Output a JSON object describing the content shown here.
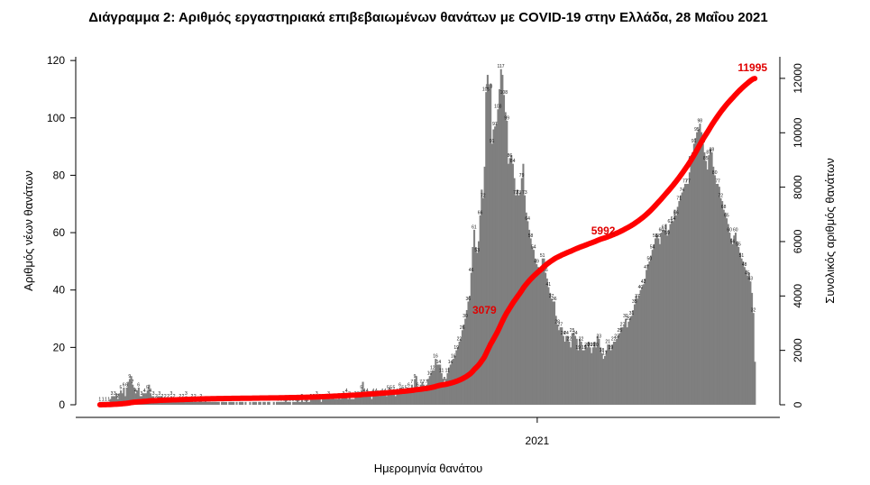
{
  "chart_data": {
    "type": "bar",
    "title": "Διάγραμμα 2: Αριθμός εργαστηριακά επιβεβαιωμένων θανάτων με COVID-19 στην Ελλάδα, 28 Μαΐου 2021",
    "xlabel": "Ημερομηνία θανάτου",
    "ylabel_left": "Αριθμός νέων θανάτων",
    "ylabel_right": "Συνολικός αριθμός θανάτων",
    "x_start_date": "2020-03-12",
    "x_end_date": "2021-05-27",
    "x_ticks": [
      {
        "date": "2021-01-01",
        "label": "2021"
      }
    ],
    "ylim_left": [
      0,
      130
    ],
    "yticks_left": [
      0,
      20,
      40,
      60,
      80,
      100,
      120
    ],
    "ylim_right": [
      0,
      12800
    ],
    "yticks_right": [
      0,
      2000,
      4000,
      6000,
      8000,
      10000,
      12000
    ],
    "bar_color": "#7f7f7f",
    "line_color": "#ff0000",
    "annotations": [
      {
        "date": "2020-11-22",
        "value": 3079,
        "label": "3079"
      },
      {
        "date": "2021-02-10",
        "value": 5992,
        "label": "5992"
      },
      {
        "date": "2021-05-26",
        "value": 11995,
        "label": "11995"
      }
    ],
    "new_deaths": [
      1,
      1,
      1,
      1,
      1,
      1,
      2,
      3,
      3,
      4,
      2,
      5,
      4,
      6,
      3,
      7,
      9,
      10,
      7,
      5,
      4,
      6,
      3,
      3,
      4,
      4,
      5,
      7,
      3,
      3,
      2,
      2,
      3,
      3,
      2,
      2,
      2,
      2,
      2,
      3,
      2,
      2,
      1,
      2,
      2,
      1,
      2,
      3,
      2,
      1,
      2,
      1,
      2,
      1,
      1,
      2,
      1,
      1,
      2,
      1,
      1,
      1,
      1,
      1,
      1,
      1,
      0,
      1,
      1,
      1,
      0,
      1,
      1,
      1,
      0,
      1,
      0,
      1,
      1,
      0,
      1,
      0,
      1,
      0,
      1,
      1,
      0,
      1,
      1,
      0,
      1,
      0,
      1,
      1,
      0,
      1,
      0,
      1,
      1,
      1,
      1,
      1,
      2,
      1,
      1,
      0,
      1,
      1,
      2,
      1,
      1,
      2,
      1,
      2,
      1,
      1,
      2,
      2,
      2,
      3,
      2,
      1,
      2,
      3,
      2,
      3,
      2,
      2,
      3,
      2,
      2,
      4,
      2,
      3,
      3,
      4,
      2,
      3,
      2,
      2,
      3,
      4,
      3,
      4,
      8,
      4,
      3,
      4,
      3,
      2,
      4,
      3,
      5,
      3,
      5,
      4,
      4,
      3,
      5,
      6,
      4,
      5,
      3,
      4,
      6,
      7,
      5,
      4,
      5,
      6,
      5,
      7,
      6,
      12,
      6,
      5,
      7,
      8,
      6,
      7,
      9,
      10,
      12,
      11,
      16,
      13,
      15,
      12,
      9,
      8,
      10,
      12,
      14,
      15,
      16,
      18,
      20,
      22,
      23,
      27,
      29,
      33,
      36,
      39,
      52,
      62,
      55,
      53,
      59,
      76,
      72,
      85,
      121,
      108,
      115,
      89,
      98,
      96,
      102,
      110,
      119,
      112,
      103,
      100,
      82,
      88,
      86,
      80,
      73,
      76,
      71,
      78,
      84,
      70,
      65,
      62,
      58,
      55,
      53,
      49,
      48,
      46,
      48,
      53,
      47,
      44,
      41,
      38,
      35,
      37,
      30,
      27,
      26,
      28,
      24,
      22,
      25,
      22,
      20,
      26,
      24,
      25,
      18,
      23,
      22,
      17,
      21,
      20,
      23,
      18,
      19,
      22,
      20,
      25,
      21,
      18,
      16,
      17,
      20,
      22,
      19,
      21,
      22,
      23,
      24,
      25,
      28,
      26,
      31,
      27,
      29,
      30,
      33,
      35,
      38,
      36,
      39,
      41,
      42,
      45,
      48,
      50,
      52,
      55,
      57,
      60,
      58,
      56,
      62,
      60,
      64,
      59,
      61,
      65,
      63,
      68,
      66,
      70,
      72,
      74,
      75,
      78,
      76,
      80,
      85,
      89,
      92,
      94,
      96,
      98,
      93,
      89,
      86,
      82,
      88,
      90,
      84,
      80,
      76,
      78,
      73,
      71,
      68,
      66,
      64,
      60,
      58,
      56,
      61,
      58,
      55,
      53,
      50,
      49,
      47,
      45,
      46,
      40,
      36,
      15
    ]
  }
}
